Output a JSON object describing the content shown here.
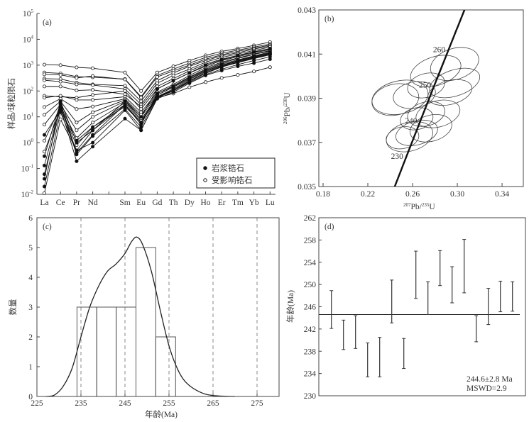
{
  "chart_data": [
    {
      "type": "line",
      "panel_label": "(a)",
      "title": "",
      "ylabel": "样品/球粒陨石",
      "xlabel": "",
      "yscale": "log",
      "ylim_exp": [
        -2,
        5
      ],
      "ytick_base": "10",
      "ytick_exps": [
        "-2",
        "-1",
        "0",
        "1",
        "2",
        "3",
        "4",
        "5"
      ],
      "categories": [
        "La",
        "Ce",
        "Pr",
        "Nd",
        "Sm",
        "Eu",
        "Gd",
        "Th",
        "Dy",
        "Ho",
        "Er",
        "Tm",
        "Yb",
        "Lu"
      ],
      "gap_after": "Nd",
      "legend": [
        {
          "label": "岩浆锆石",
          "marker": "filled-circle"
        },
        {
          "label": "受影响锆石",
          "marker": "open-circle"
        }
      ],
      "legend_position": "bottom-right",
      "series": [
        {
          "group": "affected",
          "values": [
            1050,
            1000,
            820,
            760,
            520,
            100,
            520,
            900,
            1500,
            2400,
            3400,
            4400,
            5800,
            7800
          ]
        },
        {
          "group": "affected",
          "values": [
            520,
            480,
            360,
            340,
            290,
            60,
            400,
            700,
            1200,
            2000,
            2900,
            3800,
            5000,
            6500
          ]
        },
        {
          "group": "affected",
          "values": [
            440,
            420,
            320,
            380,
            280,
            55,
            350,
            600,
            1000,
            1700,
            2500,
            3400,
            4500,
            6000
          ]
        },
        {
          "group": "affected",
          "values": [
            300,
            290,
            210,
            180,
            160,
            40,
            250,
            500,
            900,
            1500,
            2300,
            3000,
            4200,
            5500
          ]
        },
        {
          "group": "affected",
          "values": [
            260,
            230,
            180,
            170,
            120,
            30,
            200,
            400,
            700,
            1300,
            2000,
            2700,
            3700,
            5000
          ]
        },
        {
          "group": "affected",
          "values": [
            150,
            150,
            105,
            110,
            75,
            25,
            150,
            300,
            600,
            1100,
            1700,
            2400,
            3300,
            4400
          ]
        },
        {
          "group": "affected",
          "values": [
            65,
            60,
            55,
            70,
            100,
            20,
            120,
            250,
            500,
            900,
            1500,
            2100,
            3000,
            4000
          ]
        },
        {
          "group": "affected",
          "values": [
            55,
            65,
            45,
            45,
            60,
            15,
            90,
            180,
            400,
            800,
            1300,
            1900,
            2700,
            3700
          ]
        },
        {
          "group": "affected",
          "values": [
            24,
            50,
            20,
            25,
            50,
            12,
            80,
            160,
            350,
            700,
            1200,
            1800,
            2600,
            3500
          ]
        },
        {
          "group": "affected",
          "values": [
            12,
            40,
            6,
            15,
            45,
            10,
            70,
            140,
            300,
            600,
            1000,
            1500,
            2200,
            3000
          ]
        },
        {
          "group": "affected",
          "values": [
            5,
            30,
            3,
            10,
            40,
            8,
            60,
            120,
            280,
            550,
            950,
            1400,
            2000,
            2800
          ]
        },
        {
          "group": "affected",
          "values": [
            1.2,
            25,
            1.5,
            6,
            35,
            7,
            55,
            110,
            250,
            500,
            900,
            1300,
            1900,
            2600
          ]
        },
        {
          "group": "affected",
          "values": [
            0.45,
            20,
            0.8,
            4,
            30,
            6,
            60,
            100,
            240,
            480,
            850,
            1250,
            1800,
            2500
          ]
        },
        {
          "group": "affected",
          "values": [
            0.011,
            8,
            0.5,
            3,
            28,
            6,
            55,
            80,
            140,
            220,
            320,
            420,
            570,
            830
          ]
        },
        {
          "group": "magmatic",
          "values": [
            0.3,
            35,
            0.4,
            2,
            30,
            5,
            80,
            150,
            330,
            650,
            1100,
            1600,
            2300,
            3200
          ]
        },
        {
          "group": "magmatic",
          "values": [
            0.13,
            28,
            0.35,
            1.8,
            20,
            4,
            60,
            110,
            250,
            500,
            850,
            1300,
            1900,
            2600
          ]
        },
        {
          "group": "magmatic",
          "values": [
            0.06,
            22,
            0.19,
            0.7,
            8.5,
            3,
            50,
            90,
            200,
            400,
            620,
            900,
            1200,
            1700
          ]
        },
        {
          "group": "magmatic",
          "values": [
            0.02,
            15,
            0.5,
            1,
            18,
            3,
            55,
            100,
            220,
            430,
            700,
            1050,
            1500,
            2100
          ]
        },
        {
          "group": "magmatic",
          "values": [
            0.04,
            40,
            1,
            3,
            40,
            10,
            120,
            250,
            500,
            1000,
            1600,
            2300,
            3200,
            4300
          ]
        },
        {
          "group": "magmatic",
          "values": [
            2,
            18,
            1.2,
            4,
            25,
            6,
            70,
            140,
            300,
            600,
            1000,
            1450,
            2100,
            2900
          ]
        }
      ]
    },
    {
      "type": "scatter",
      "subtype": "concordia",
      "panel_label": "(b)",
      "xlabel_parts": [
        "207",
        "Pb/",
        "235",
        "U"
      ],
      "ylabel_parts": [
        "206",
        "Pb/",
        "238",
        "U"
      ],
      "xlim": [
        0.1762,
        0.359
      ],
      "ylim": [
        0.035,
        0.043
      ],
      "xticks": [
        "0.18",
        "0.22",
        "0.26",
        "0.30",
        "0.34"
      ],
      "yticks": [
        "0.035",
        "0.037",
        "0.039",
        "0.041",
        "0.043"
      ],
      "concordia_age_range_ma": [
        215,
        280
      ],
      "concordia_age_labels": [
        "230",
        "240",
        "250",
        "260"
      ],
      "ellipses": [
        {
          "x": 0.2976,
          "y": 0.04055,
          "a": 0.0222,
          "b": 0.0007,
          "tilt": -18
        },
        {
          "x": 0.2807,
          "y": 0.04023,
          "a": 0.0233,
          "b": 0.00065,
          "tilt": -18
        },
        {
          "x": 0.2722,
          "y": 0.03958,
          "a": 0.017,
          "b": 0.00054,
          "tilt": -15
        },
        {
          "x": 0.2976,
          "y": 0.03969,
          "a": 0.0233,
          "b": 0.00059,
          "tilt": -18
        },
        {
          "x": 0.2934,
          "y": 0.03926,
          "a": 0.0201,
          "b": 0.00054,
          "tilt": -15
        },
        {
          "x": 0.2446,
          "y": 0.03894,
          "a": 0.0212,
          "b": 0.0007,
          "tilt": -12
        },
        {
          "x": 0.2488,
          "y": 0.03904,
          "a": 0.0254,
          "b": 0.00075,
          "tilt": -12
        },
        {
          "x": 0.2616,
          "y": 0.03915,
          "a": 0.0191,
          "b": 0.00059,
          "tilt": -12
        },
        {
          "x": 0.2722,
          "y": 0.03829,
          "a": 0.017,
          "b": 0.00054,
          "tilt": -15
        },
        {
          "x": 0.2827,
          "y": 0.03829,
          "a": 0.0201,
          "b": 0.00059,
          "tilt": -15
        },
        {
          "x": 0.2573,
          "y": 0.03726,
          "a": 0.0212,
          "b": 0.00065,
          "tilt": -15
        },
        {
          "x": 0.2637,
          "y": 0.03743,
          "a": 0.0191,
          "b": 0.00054,
          "tilt": -15
        },
        {
          "x": 0.2764,
          "y": 0.03764,
          "a": 0.0191,
          "b": 0.00059,
          "tilt": -15
        },
        {
          "x": 0.2637,
          "y": 0.03807,
          "a": 0.0148,
          "b": 0.00049,
          "tilt": -12
        },
        {
          "x": 0.251,
          "y": 0.03721,
          "a": 0.0148,
          "b": 0.00049,
          "tilt": -12
        }
      ]
    },
    {
      "type": "bar",
      "subtype": "histogram-with-kde",
      "panel_label": "(c)",
      "xlabel": "年龄(Ma)",
      "ylabel": "数量",
      "xlim": [
        225,
        280
      ],
      "ylim": [
        0,
        6
      ],
      "xticks": [
        "225",
        "235",
        "245",
        "255",
        "265",
        "275"
      ],
      "yticks": [
        "0",
        "1",
        "2",
        "3",
        "4",
        "5",
        "6"
      ],
      "dashed_lines": [
        235,
        245,
        255,
        265,
        275
      ],
      "bins": [
        {
          "from": 234.1,
          "to": 238.6,
          "count": 3
        },
        {
          "from": 238.6,
          "to": 243.0,
          "count": 3
        },
        {
          "from": 243.0,
          "to": 247.5,
          "count": 3
        },
        {
          "from": 247.5,
          "to": 252.0,
          "count": 5
        },
        {
          "from": 252.0,
          "to": 256.5,
          "count": 2
        }
      ],
      "kde": [
        [
          227,
          0
        ],
        [
          229,
          0.05
        ],
        [
          231,
          0.35
        ],
        [
          233,
          0.95
        ],
        [
          235,
          2.0
        ],
        [
          237,
          3.0
        ],
        [
          239,
          3.7
        ],
        [
          241,
          4.2
        ],
        [
          243,
          4.45
        ],
        [
          245,
          4.8
        ],
        [
          246.5,
          5.2
        ],
        [
          247.7,
          5.35
        ],
        [
          249,
          5.1
        ],
        [
          251,
          4.2
        ],
        [
          253,
          2.9
        ],
        [
          255,
          1.7
        ],
        [
          257,
          0.9
        ],
        [
          259,
          0.45
        ],
        [
          262,
          0.15
        ],
        [
          265,
          0.03
        ],
        [
          270,
          0
        ]
      ]
    },
    {
      "type": "scatter",
      "subtype": "weighted-mean-error-bars",
      "panel_label": "(d)",
      "ylabel": "年龄(Ma)",
      "ylim": [
        230,
        262
      ],
      "yticks": [
        "230",
        "234",
        "238",
        "242",
        "246",
        "250",
        "254",
        "258",
        "262"
      ],
      "mean": 244.6,
      "result_text": "244.6±2.8 Ma",
      "mswd_text": "MSWD=2.9",
      "bars": [
        [
          242.1,
          248.9
        ],
        [
          238.3,
          243.6
        ],
        [
          238.5,
          244.4
        ],
        [
          233.4,
          239.5
        ],
        [
          233.4,
          240.5
        ],
        [
          243.1,
          250.8
        ],
        [
          234.9,
          240.3
        ],
        [
          247.5,
          256.0
        ],
        [
          244.6,
          250.5
        ],
        [
          249.8,
          256.1
        ],
        [
          246.7,
          253.2
        ],
        [
          248.5,
          258.1
        ],
        [
          239.7,
          244.4
        ],
        [
          242.8,
          249.3
        ],
        [
          245.1,
          250.6
        ],
        [
          245.2,
          250.5
        ]
      ]
    }
  ]
}
